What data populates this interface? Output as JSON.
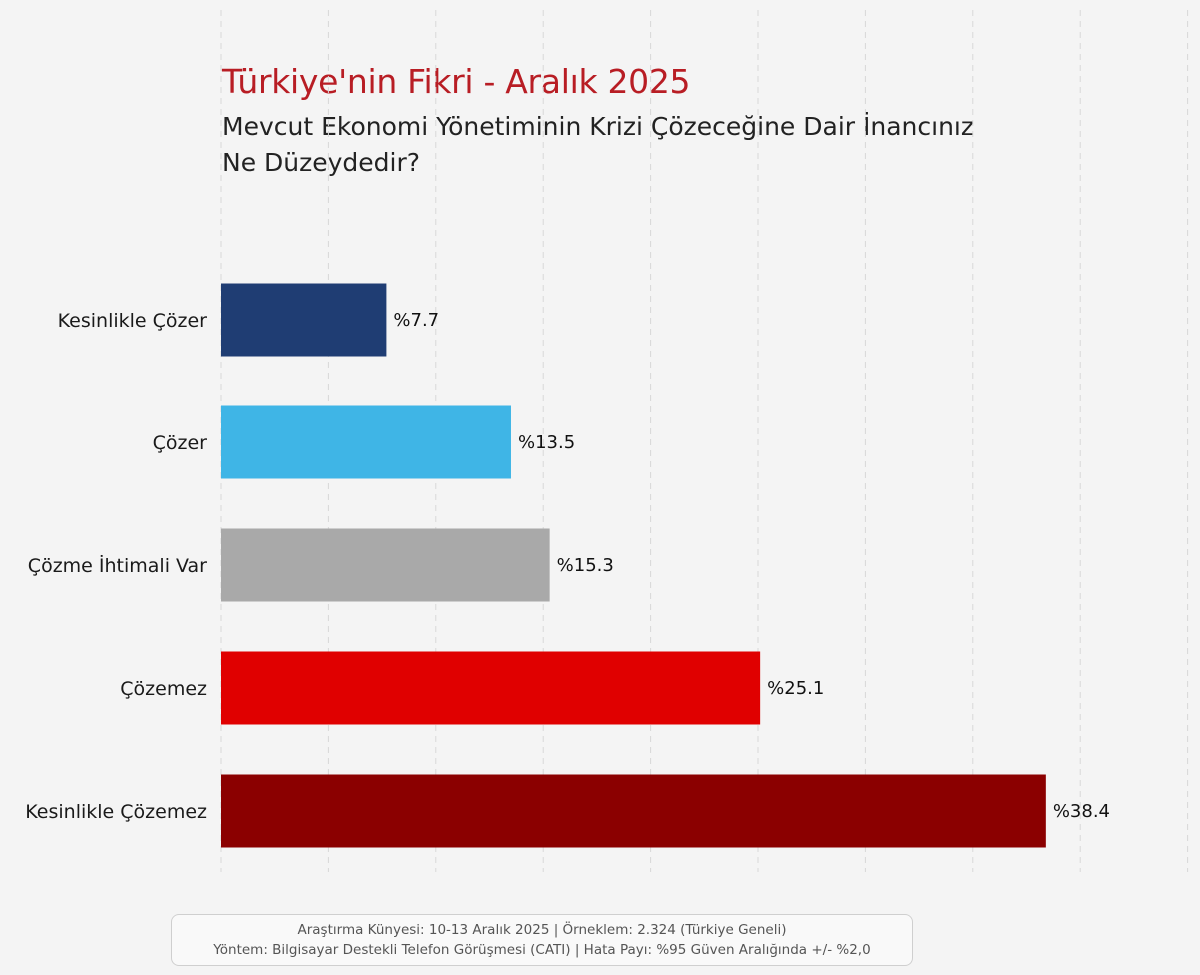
{
  "colors": {
    "title": "#b81d24",
    "subtitle": "#222222",
    "grid": "#d8d8d8",
    "background": "#f4f4f4"
  },
  "footer": {
    "line1": "Araştırma Künyesi: 10-13 Aralık 2025 | Örneklem: 2.324 (Türkiye Geneli)",
    "line2": "Yöntem: Bilgisayar Destekli Telefon Görüşmesi (CATI) | Hata Payı: %95 Güven Aralığında +/- %2,0"
  },
  "chart_data": {
    "type": "bar",
    "orientation": "horizontal",
    "title": "Türkiye'nin Fikri - Aralık 2025",
    "subtitle": "Mevcut Ekonomi Yönetiminin Krizi Çözeceğine Dair İnancınız Ne Düzeydedir?",
    "categories": [
      "Kesinlikle Çözer",
      "Çözer",
      "Çözme İhtimali Var",
      "Çözemez",
      "Kesinlikle Çözemez"
    ],
    "values": [
      7.7,
      13.5,
      15.3,
      25.1,
      38.4
    ],
    "value_labels": [
      "%7.7",
      "%13.5",
      "%15.3",
      "%25.1",
      "%38.4"
    ],
    "bar_colors": [
      "#1f3d73",
      "#3fb5e6",
      "#a9a9a9",
      "#e00000",
      "#8b0000"
    ],
    "xlim": [
      0,
      45
    ],
    "grid": true,
    "grid_style": "dashed vertical",
    "legend": "none",
    "xlabel": "",
    "ylabel": ""
  }
}
